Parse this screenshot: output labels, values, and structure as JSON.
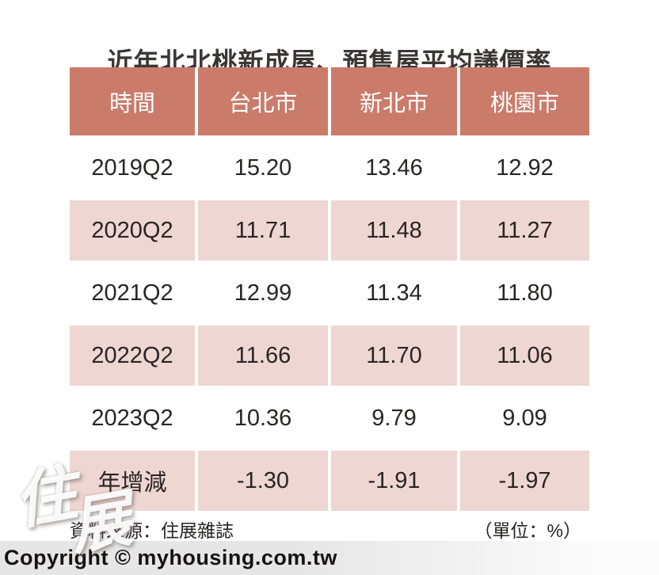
{
  "title": "近年北北桃新成屋、預售屋平均議價率",
  "table": {
    "headers": [
      "時間",
      "台北市",
      "新北市",
      "桃園市"
    ],
    "rows": [
      {
        "cells": [
          "2019Q2",
          "15.20",
          "13.46",
          "12.92"
        ]
      },
      {
        "cells": [
          "2020Q2",
          "11.71",
          "11.48",
          "11.27"
        ]
      },
      {
        "cells": [
          "2021Q2",
          "12.99",
          "11.34",
          "11.80"
        ]
      },
      {
        "cells": [
          "2022Q2",
          "11.66",
          "11.70",
          "11.06"
        ]
      },
      {
        "cells": [
          "2023Q2",
          "10.36",
          "9.79",
          "9.09"
        ]
      },
      {
        "cells": [
          "年增減",
          "-1.30",
          "-1.91",
          "-1.97"
        ]
      }
    ]
  },
  "footer": {
    "source": "資料來源：住展雜誌",
    "unit": "（單位：%）"
  },
  "watermark": {
    "char1": "住",
    "char2": "展"
  },
  "copyright": "Copyright © myhousing.com.tw",
  "colors": {
    "header_bg": "#ca7b6a",
    "alt_row_bg": "#eed6d2",
    "row_bg": "#ffffff",
    "header_text": "#ffffff",
    "body_text": "#2a2424",
    "title_text": "#3b3535",
    "copyright_strip_bg": "#e7e6e6"
  },
  "chart_data": {
    "type": "table",
    "title": "近年北北桃新成屋、預售屋平均議價率",
    "columns": [
      "時間",
      "台北市",
      "新北市",
      "桃園市"
    ],
    "rows": [
      [
        "2019Q2",
        15.2,
        13.46,
        12.92
      ],
      [
        "2020Q2",
        11.71,
        11.48,
        11.27
      ],
      [
        "2021Q2",
        12.99,
        11.34,
        11.8
      ],
      [
        "2022Q2",
        11.66,
        11.7,
        11.06
      ],
      [
        "2023Q2",
        10.36,
        9.79,
        9.09
      ],
      [
        "年增減",
        -1.3,
        -1.91,
        -1.97
      ]
    ],
    "unit": "%",
    "source": "住展雜誌",
    "layout": {
      "zebra_striping": true,
      "header_row": true
    }
  }
}
